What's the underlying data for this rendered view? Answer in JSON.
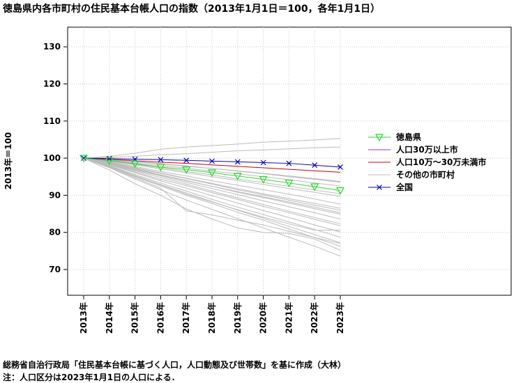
{
  "chart_data": {
    "type": "line",
    "title": "徳島県内各市町村の住民基本台帳人口の指数（2013年1月1日＝100，各年1月1日）",
    "ylabel": "2013年＝100",
    "xlabel": "",
    "categories": [
      "2013年",
      "2014年",
      "2015年",
      "2016年",
      "2017年",
      "2018年",
      "2019年",
      "2020年",
      "2021年",
      "2022年",
      "2023年"
    ],
    "ylim": [
      63,
      137
    ],
    "yticks": [
      70,
      80,
      90,
      100,
      110,
      120,
      130
    ],
    "grid": true,
    "legend_position": "right",
    "colors": {
      "tokushima": "#22dd22",
      "big_city": "#9933cc",
      "mid_city": "#cc0000",
      "other": "#bbbbbb",
      "national": "#0000cc"
    },
    "series": [
      {
        "key": "tokushima",
        "name": "徳島県",
        "marker": "triangle-down",
        "values": [
          100,
          99.3,
          98.5,
          97.6,
          96.9,
          96.1,
          95.2,
          94.3,
          93.3,
          92.3,
          91.3
        ]
      },
      {
        "key": "big_city",
        "name": "人口30万以上市",
        "marker": "none",
        "values": [
          null,
          null,
          null,
          null,
          null,
          null,
          null,
          null,
          null,
          null,
          null
        ]
      },
      {
        "key": "mid_city",
        "name": "人口10万～30万未満市",
        "marker": "none",
        "values": [
          100,
          99.7,
          99.3,
          98.9,
          98.6,
          98.2,
          97.8,
          97.4,
          97.0,
          96.6,
          96.2
        ]
      },
      {
        "key": "other",
        "name": "その他の市町村",
        "marker": "none",
        "values": null
      },
      {
        "key": "national",
        "name": "全国",
        "marker": "x",
        "values": [
          100,
          99.9,
          99.7,
          99.6,
          99.4,
          99.2,
          99.0,
          98.8,
          98.6,
          98.1,
          97.6
        ]
      }
    ],
    "other_municipalities": [
      [
        100,
        100.5,
        101.3,
        102.4,
        103.0,
        103.4,
        103.8,
        104.3,
        104.6,
        104.9,
        105.3
      ],
      [
        100,
        100.2,
        100.5,
        100.9,
        101.2,
        101.6,
        102.0,
        102.2,
        102.5,
        102.8,
        103.0
      ],
      [
        100,
        99.6,
        99.1,
        98.5,
        97.9,
        97.2,
        96.6,
        95.9,
        95.2,
        94.5,
        93.7
      ],
      [
        100,
        99.3,
        98.4,
        97.4,
        96.4,
        95.5,
        94.4,
        93.4,
        92.4,
        91.4,
        90.4
      ],
      [
        100,
        99.0,
        97.8,
        96.4,
        95.2,
        93.9,
        92.7,
        91.5,
        90.3,
        89.0,
        87.6
      ],
      [
        100,
        98.6,
        97.0,
        95.4,
        93.9,
        92.4,
        91.0,
        89.6,
        88.2,
        86.8,
        85.3
      ],
      [
        100,
        98.3,
        96.3,
        94.3,
        92.6,
        90.7,
        88.9,
        87.0,
        85.3,
        83.5,
        81.8
      ],
      [
        100,
        98.0,
        95.6,
        93.3,
        91.1,
        88.9,
        86.8,
        84.8,
        82.8,
        80.8,
        78.7
      ],
      [
        100,
        97.7,
        95.0,
        92.5,
        90.0,
        87.8,
        85.4,
        83.3,
        80.9,
        78.6,
        76.3
      ],
      [
        100,
        97.4,
        94.4,
        91.5,
        88.7,
        86.2,
        83.7,
        81.2,
        78.7,
        76.3,
        73.6
      ],
      [
        100,
        98.9,
        97.5,
        96.0,
        94.6,
        93.2,
        91.8,
        90.4,
        89.1,
        87.8,
        86.5
      ],
      [
        100,
        98.4,
        96.6,
        94.8,
        93.0,
        91.1,
        89.3,
        87.5,
        85.7,
        84.0,
        82.3
      ],
      [
        100,
        97.9,
        95.2,
        92.8,
        90.3,
        88.2,
        86.1,
        84.1,
        82.3,
        80.6,
        80.6
      ],
      [
        100,
        99.5,
        99.0,
        98.4,
        97.8,
        97.2,
        96.5,
        95.8,
        95.0,
        94.3,
        93.5
      ],
      [
        100,
        98.2,
        96.1,
        93.9,
        91.9,
        89.9,
        87.9,
        85.9,
        84.0,
        82.0,
        80.1
      ],
      [
        100,
        97.6,
        94.7,
        91.9,
        85.8,
        84.7,
        83.3,
        82.0,
        80.3,
        78.6,
        77.0
      ],
      [
        100,
        99.2,
        98.2,
        97.1,
        96.1,
        95.0,
        94.0,
        92.9,
        91.8,
        90.8,
        89.7
      ],
      [
        100,
        98.7,
        97.2,
        95.5,
        94.0,
        92.4,
        90.8,
        89.4,
        87.9,
        86.4,
        84.9
      ],
      [
        100,
        97.8,
        95.3,
        92.9,
        90.6,
        88.3,
        86.0,
        83.8,
        81.6,
        79.4,
        77.2
      ],
      [
        100,
        96.8,
        93.1,
        90.0,
        86.3,
        83.6,
        81.2,
        80.0,
        79.7,
        78.2,
        75.2
      ],
      [
        100,
        99.4,
        98.7,
        98.0,
        97.3,
        96.5,
        95.8,
        95.0,
        94.2,
        93.3,
        92.5
      ],
      [
        100,
        98.8,
        97.4,
        95.9,
        94.5,
        93.0,
        91.5,
        90.1,
        88.7,
        87.3,
        86.0
      ],
      [
        100,
        98.5,
        96.8,
        95.2,
        93.5,
        91.8,
        90.2,
        88.5,
        86.9,
        85.3,
        83.6
      ]
    ]
  },
  "footer": {
    "line1": "総務省自治行政局「住民基本台帳に基づく人口，人口動態及び世帯数」を基に作成（大林）",
    "line2": "注：人口区分は2023年1月1日の人口による．"
  }
}
